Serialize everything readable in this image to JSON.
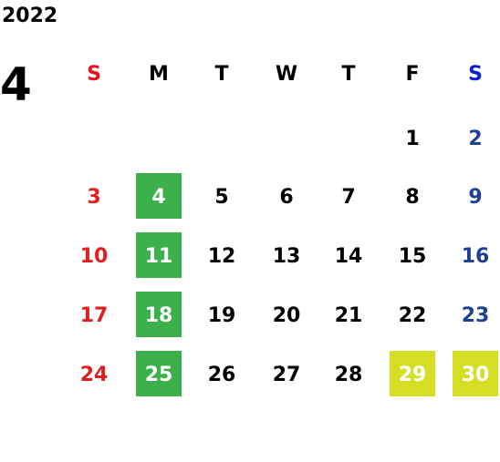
{
  "calendar": {
    "year": "2022",
    "month": "4",
    "weekdays": [
      "S",
      "M",
      "T",
      "W",
      "T",
      "F",
      "S"
    ],
    "weeks": [
      [
        null,
        null,
        null,
        null,
        null,
        1,
        2
      ],
      [
        3,
        4,
        5,
        6,
        7,
        8,
        9
      ],
      [
        10,
        11,
        12,
        13,
        14,
        15,
        16
      ],
      [
        17,
        18,
        19,
        20,
        21,
        22,
        23
      ],
      [
        24,
        25,
        26,
        27,
        28,
        29,
        30
      ]
    ]
  }
}
